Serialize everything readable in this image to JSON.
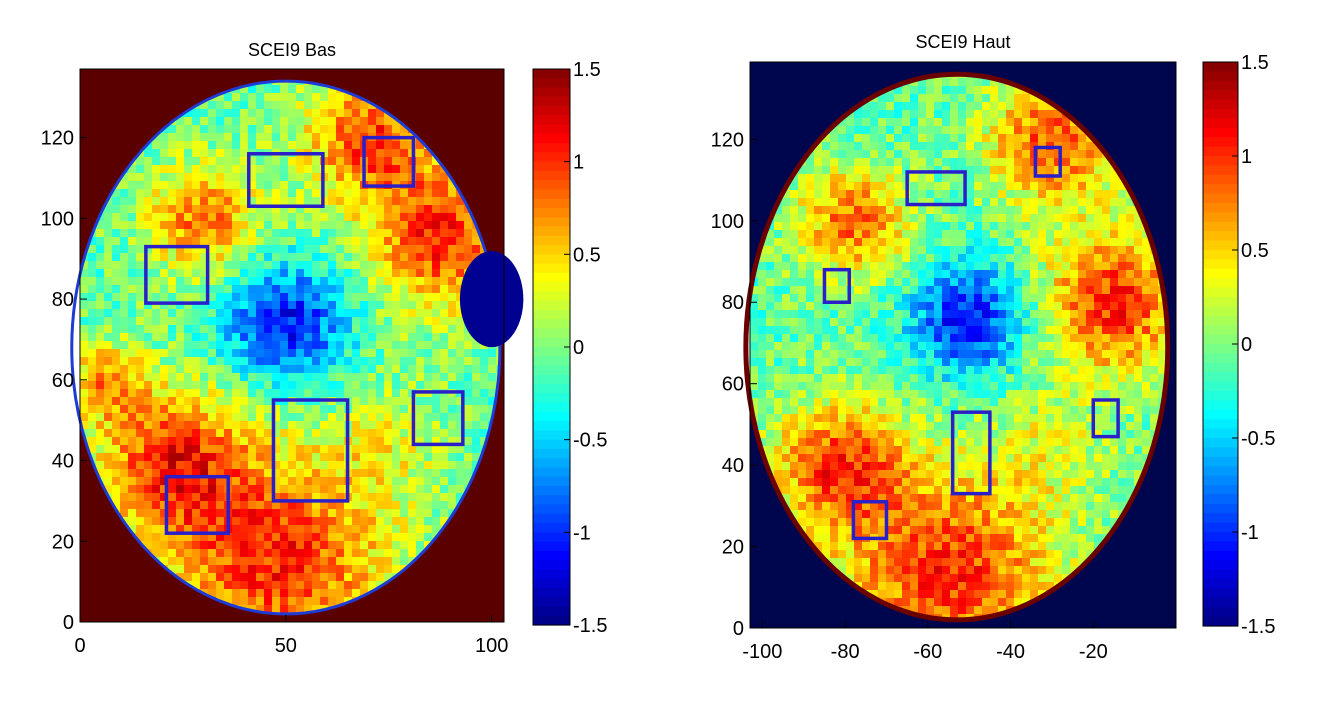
{
  "chart_data": [
    {
      "type": "heatmap",
      "title": "SCEI9 Bas",
      "xlim": [
        0,
        103
      ],
      "ylim": [
        0,
        137
      ],
      "xticks": [
        0,
        50,
        100
      ],
      "yticks": [
        0,
        20,
        40,
        60,
        80,
        100,
        120
      ],
      "background_color": "#5a0000",
      "colorbar": {
        "range": [
          -1.5,
          1.5
        ],
        "ticks": [
          1.5,
          1,
          0.5,
          0,
          -0.5,
          -1,
          -1.5
        ],
        "ticklabels": [
          "1.5",
          "1",
          "0.5",
          "0",
          "-0.5",
          "-1",
          "-1.5"
        ],
        "colormap": "jet"
      },
      "field": {
        "ellipse": {
          "center": [
            50,
            68
          ],
          "radii": [
            52,
            66
          ]
        },
        "hotspots": [
          {
            "x": 50,
            "y": 74,
            "value": -1.1,
            "spread": 15
          },
          {
            "x": 22,
            "y": 40,
            "value": 0.9,
            "spread": 18
          },
          {
            "x": 48,
            "y": 15,
            "value": 1.0,
            "spread": 28
          },
          {
            "x": 88,
            "y": 95,
            "value": 1.0,
            "spread": 18
          },
          {
            "x": 70,
            "y": 120,
            "value": 0.9,
            "spread": 16
          },
          {
            "x": 30,
            "y": 100,
            "value": 0.8,
            "spread": 14
          },
          {
            "x": 75,
            "y": 45,
            "value": 0.2,
            "spread": 15
          },
          {
            "x": 6,
            "y": 60,
            "value": 0.6,
            "spread": 10
          }
        ],
        "base_value": -0.1,
        "blob_region": {
          "x": 100,
          "y": 80,
          "radius": 14,
          "value": -1.45
        }
      },
      "boxes": [
        {
          "x0": 41,
          "x1": 59,
          "y0": 103,
          "y1": 116
        },
        {
          "x0": 69,
          "x1": 81,
          "y0": 108,
          "y1": 120
        },
        {
          "x0": 16,
          "x1": 31,
          "y0": 79,
          "y1": 93
        },
        {
          "x0": 47,
          "x1": 65,
          "y0": 30,
          "y1": 55
        },
        {
          "x0": 81,
          "x1": 93,
          "y0": 44,
          "y1": 57
        },
        {
          "x0": 21,
          "x1": 36,
          "y0": 22,
          "y1": 36
        }
      ]
    },
    {
      "type": "heatmap",
      "title": "SCEI9 Haut",
      "xlim": [
        -103,
        0
      ],
      "ylim": [
        0,
        139
      ],
      "xticks": [
        -100,
        -80,
        -60,
        -40,
        -20
      ],
      "yticks": [
        0,
        20,
        40,
        60,
        80,
        100,
        120
      ],
      "background_color": "#00064d",
      "colorbar": {
        "range": [
          -1.5,
          1.5
        ],
        "ticks": [
          1.5,
          1,
          0.5,
          0,
          -0.5,
          -1,
          -1.5
        ],
        "ticklabels": [
          "1.5",
          "1",
          "0.5",
          "0",
          "-0.5",
          "-1",
          "-1.5"
        ],
        "colormap": "jet"
      },
      "field": {
        "ellipse": {
          "center": [
            -53,
            69
          ],
          "radii": [
            51,
            67
          ]
        },
        "hotspots": [
          {
            "x": -50,
            "y": 76,
            "value": -1.1,
            "spread": 14
          },
          {
            "x": -82,
            "y": 40,
            "value": 0.9,
            "spread": 16
          },
          {
            "x": -55,
            "y": 14,
            "value": 1.0,
            "spread": 26
          },
          {
            "x": -15,
            "y": 80,
            "value": 1.0,
            "spread": 18
          },
          {
            "x": -30,
            "y": 120,
            "value": 0.9,
            "spread": 16
          },
          {
            "x": -78,
            "y": 100,
            "value": 0.8,
            "spread": 14
          },
          {
            "x": -30,
            "y": 45,
            "value": 0.2,
            "spread": 15
          }
        ],
        "base_value": -0.1
      },
      "boxes": [
        {
          "x0": -65,
          "x1": -51,
          "y0": 104,
          "y1": 112
        },
        {
          "x0": -34,
          "x1": -28,
          "y0": 111,
          "y1": 118
        },
        {
          "x0": -85,
          "x1": -79,
          "y0": 80,
          "y1": 88
        },
        {
          "x0": -54,
          "x1": -45,
          "y0": 33,
          "y1": 53
        },
        {
          "x0": -20,
          "x1": -14,
          "y0": 47,
          "y1": 56
        },
        {
          "x0": -78,
          "x1": -70,
          "y0": 22,
          "y1": 31
        }
      ]
    }
  ]
}
